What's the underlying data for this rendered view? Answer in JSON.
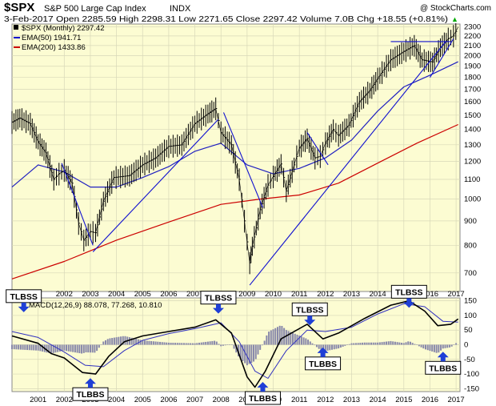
{
  "header": {
    "symbol": "$SPX",
    "name": "S&P 500 Large Cap Index",
    "exchange": "INDX",
    "watermark": "@ StockCharts.com",
    "quote": "3-Feb-2017   Open 2285.59  High 2298.31  Low 2271.65  Close 2297.42  Volume 7.0B  Chg +18.55 (+0.81%)",
    "quote_arrow": "▲"
  },
  "legend": [
    {
      "label": "$SPX (Monthly) 2297.42",
      "color": "#000000"
    },
    {
      "label": "EMA(50) 1941.71",
      "color": "#0000cc"
    },
    {
      "label": "EMA(200) 1433.86",
      "color": "#cc0000"
    }
  ],
  "macd_legend": "MACD(12,26,9) 88.078, 77.268, 10.810",
  "colors": {
    "panel_bg": "#fcfcd2",
    "grid": "#d8d8b8",
    "price": "#000000",
    "ema50": "#2020c0",
    "ema200": "#cc0000",
    "trendline": "#1010d0",
    "macd_line": "#000000",
    "signal_line": "#3030c0",
    "histogram": "#8888aa",
    "callout_arrow": "#1f3fd6"
  },
  "chart_data": {
    "type": "line",
    "price_axis": {
      "scale": "log",
      "range": [
        640,
        2330
      ],
      "ticks": [
        700,
        800,
        900,
        1000,
        1100,
        1200,
        1300,
        1400,
        1500,
        1600,
        1700,
        1800,
        1900,
        2000,
        2100,
        2200,
        2300
      ]
    },
    "x_top_ticks": [
      "2002",
      "2003",
      "2004",
      "2005",
      "2006",
      "2007",
      "2008",
      "2009",
      "2010",
      "2011",
      "2012",
      "2013",
      "2014",
      "2015",
      "2016",
      "2017"
    ],
    "x_bottom_ticks": [
      "2001",
      "2002",
      "2003",
      "2004",
      "2005",
      "2006",
      "2007",
      "2008",
      "2009",
      "2010",
      "2011",
      "2012",
      "2013",
      "2014",
      "2015",
      "2016",
      "2017"
    ],
    "price_series": [
      {
        "x": 2000.0,
        "y": 1450
      },
      {
        "x": 2000.3,
        "y": 1480
      },
      {
        "x": 2000.7,
        "y": 1440
      },
      {
        "x": 2001.0,
        "y": 1320
      },
      {
        "x": 2001.3,
        "y": 1250
      },
      {
        "x": 2001.6,
        "y": 1100
      },
      {
        "x": 2001.8,
        "y": 1130
      },
      {
        "x": 2002.0,
        "y": 1150
      },
      {
        "x": 2002.3,
        "y": 1080
      },
      {
        "x": 2002.55,
        "y": 890
      },
      {
        "x": 2002.75,
        "y": 820
      },
      {
        "x": 2003.0,
        "y": 855
      },
      {
        "x": 2003.2,
        "y": 850
      },
      {
        "x": 2003.5,
        "y": 990
      },
      {
        "x": 2003.9,
        "y": 1110
      },
      {
        "x": 2004.5,
        "y": 1120
      },
      {
        "x": 2005.0,
        "y": 1180
      },
      {
        "x": 2005.5,
        "y": 1220
      },
      {
        "x": 2006.0,
        "y": 1290
      },
      {
        "x": 2006.5,
        "y": 1300
      },
      {
        "x": 2007.0,
        "y": 1440
      },
      {
        "x": 2007.5,
        "y": 1510
      },
      {
        "x": 2007.8,
        "y": 1549
      },
      {
        "x": 2008.0,
        "y": 1380
      },
      {
        "x": 2008.4,
        "y": 1300
      },
      {
        "x": 2008.7,
        "y": 1100
      },
      {
        "x": 2008.9,
        "y": 900
      },
      {
        "x": 2009.1,
        "y": 735
      },
      {
        "x": 2009.2,
        "y": 797
      },
      {
        "x": 2009.5,
        "y": 950
      },
      {
        "x": 2009.8,
        "y": 1070
      },
      {
        "x": 2010.0,
        "y": 1115
      },
      {
        "x": 2010.3,
        "y": 1185
      },
      {
        "x": 2010.5,
        "y": 1040
      },
      {
        "x": 2010.8,
        "y": 1180
      },
      {
        "x": 2011.0,
        "y": 1280
      },
      {
        "x": 2011.3,
        "y": 1340
      },
      {
        "x": 2011.6,
        "y": 1220
      },
      {
        "x": 2011.8,
        "y": 1230
      },
      {
        "x": 2012.0,
        "y": 1310
      },
      {
        "x": 2012.3,
        "y": 1400
      },
      {
        "x": 2012.5,
        "y": 1360
      },
      {
        "x": 2012.9,
        "y": 1430
      },
      {
        "x": 2013.3,
        "y": 1600
      },
      {
        "x": 2013.7,
        "y": 1690
      },
      {
        "x": 2014.0,
        "y": 1790
      },
      {
        "x": 2014.5,
        "y": 1960
      },
      {
        "x": 2015.0,
        "y": 2040
      },
      {
        "x": 2015.4,
        "y": 2100
      },
      {
        "x": 2015.7,
        "y": 1960
      },
      {
        "x": 2016.1,
        "y": 1940
      },
      {
        "x": 2016.4,
        "y": 2080
      },
      {
        "x": 2016.7,
        "y": 2170
      },
      {
        "x": 2016.9,
        "y": 2200
      },
      {
        "x": 2017.08,
        "y": 2297
      }
    ],
    "ema50_series": [
      {
        "x": 2000.0,
        "y": 1060
      },
      {
        "x": 2001.0,
        "y": 1180
      },
      {
        "x": 2002.0,
        "y": 1140
      },
      {
        "x": 2003.0,
        "y": 1060
      },
      {
        "x": 2004.0,
        "y": 1060
      },
      {
        "x": 2005.0,
        "y": 1110
      },
      {
        "x": 2006.0,
        "y": 1170
      },
      {
        "x": 2007.0,
        "y": 1260
      },
      {
        "x": 2008.0,
        "y": 1310
      },
      {
        "x": 2009.0,
        "y": 1180
      },
      {
        "x": 2010.0,
        "y": 1130
      },
      {
        "x": 2011.0,
        "y": 1160
      },
      {
        "x": 2012.0,
        "y": 1220
      },
      {
        "x": 2013.0,
        "y": 1330
      },
      {
        "x": 2014.0,
        "y": 1530
      },
      {
        "x": 2015.0,
        "y": 1720
      },
      {
        "x": 2016.0,
        "y": 1820
      },
      {
        "x": 2017.08,
        "y": 1942
      }
    ],
    "ema200_series": [
      {
        "x": 2000.0,
        "y": 680
      },
      {
        "x": 2002.0,
        "y": 740
      },
      {
        "x": 2004.0,
        "y": 820
      },
      {
        "x": 2006.0,
        "y": 895
      },
      {
        "x": 2008.0,
        "y": 975
      },
      {
        "x": 2009.5,
        "y": 1000
      },
      {
        "x": 2011.0,
        "y": 1020
      },
      {
        "x": 2012.5,
        "y": 1080
      },
      {
        "x": 2014.0,
        "y": 1190
      },
      {
        "x": 2015.5,
        "y": 1310
      },
      {
        "x": 2017.08,
        "y": 1434
      }
    ],
    "trendlines": [
      {
        "x1": 2001.9,
        "y1": 1190,
        "x2": 2003.1,
        "y2": 800
      },
      {
        "x1": 2003.1,
        "y1": 775,
        "x2": 2007.9,
        "y2": 1470
      },
      {
        "x1": 2008.1,
        "y1": 1520,
        "x2": 2009.6,
        "y2": 960
      },
      {
        "x1": 2009.1,
        "y1": 660,
        "x2": 2016.6,
        "y2": 2140
      },
      {
        "x1": 2011.3,
        "y1": 1380,
        "x2": 2012.1,
        "y2": 1180
      },
      {
        "x1": 2014.5,
        "y1": 2140,
        "x2": 2016.8,
        "y2": 2140
      },
      {
        "x1": 2016.0,
        "y1": 1800,
        "x2": 2016.9,
        "y2": 2170
      }
    ],
    "macd_axis": {
      "range": [
        -160,
        160
      ],
      "ticks": [
        150,
        100,
        50,
        0,
        -50,
        -100,
        -150
      ]
    },
    "macd_series": [
      {
        "x": 2000.0,
        "y": 30
      },
      {
        "x": 2001.0,
        "y": 5
      },
      {
        "x": 2001.5,
        "y": -30
      },
      {
        "x": 2002.0,
        "y": -45
      },
      {
        "x": 2002.7,
        "y": -95
      },
      {
        "x": 2003.2,
        "y": -100
      },
      {
        "x": 2003.7,
        "y": -40
      },
      {
        "x": 2004.3,
        "y": 10
      },
      {
        "x": 2005.0,
        "y": 30
      },
      {
        "x": 2006.0,
        "y": 45
      },
      {
        "x": 2007.0,
        "y": 60
      },
      {
        "x": 2007.8,
        "y": 85
      },
      {
        "x": 2008.4,
        "y": 40
      },
      {
        "x": 2009.0,
        "y": -110
      },
      {
        "x": 2009.3,
        "y": -145
      },
      {
        "x": 2009.7,
        "y": -90
      },
      {
        "x": 2010.3,
        "y": 20
      },
      {
        "x": 2011.3,
        "y": 70
      },
      {
        "x": 2011.9,
        "y": 20
      },
      {
        "x": 2012.5,
        "y": 40
      },
      {
        "x": 2013.5,
        "y": 90
      },
      {
        "x": 2014.5,
        "y": 135
      },
      {
        "x": 2015.2,
        "y": 150
      },
      {
        "x": 2015.8,
        "y": 115
      },
      {
        "x": 2016.3,
        "y": 65
      },
      {
        "x": 2016.8,
        "y": 70
      },
      {
        "x": 2017.08,
        "y": 88
      }
    ],
    "signal_series": [
      {
        "x": 2000.0,
        "y": 45
      },
      {
        "x": 2001.0,
        "y": 25
      },
      {
        "x": 2002.0,
        "y": -25
      },
      {
        "x": 2002.8,
        "y": -70
      },
      {
        "x": 2003.5,
        "y": -75
      },
      {
        "x": 2004.3,
        "y": -20
      },
      {
        "x": 2005.0,
        "y": 15
      },
      {
        "x": 2006.0,
        "y": 38
      },
      {
        "x": 2007.0,
        "y": 55
      },
      {
        "x": 2008.0,
        "y": 75
      },
      {
        "x": 2008.7,
        "y": 10
      },
      {
        "x": 2009.3,
        "y": -90
      },
      {
        "x": 2009.8,
        "y": -115
      },
      {
        "x": 2010.5,
        "y": -20
      },
      {
        "x": 2011.3,
        "y": 50
      },
      {
        "x": 2012.0,
        "y": 45
      },
      {
        "x": 2013.0,
        "y": 60
      },
      {
        "x": 2014.0,
        "y": 105
      },
      {
        "x": 2015.0,
        "y": 140
      },
      {
        "x": 2015.8,
        "y": 130
      },
      {
        "x": 2016.5,
        "y": 80
      },
      {
        "x": 2017.08,
        "y": 77
      }
    ],
    "annotations": [
      {
        "label": "TLBSS",
        "x": 2000.45,
        "y": 155,
        "pointer": "down"
      },
      {
        "label": "TLBBS",
        "x": 2003.0,
        "y": -125,
        "pointer": "up"
      },
      {
        "label": "TLBSS",
        "x": 2007.9,
        "y": 150,
        "pointer": "down"
      },
      {
        "label": "TLBBS",
        "x": 2009.6,
        "y": -155,
        "pointer": "up"
      },
      {
        "label": "TLBSS",
        "x": 2011.4,
        "y": 110,
        "pointer": "down"
      },
      {
        "label": "TLBBS",
        "x": 2011.9,
        "y": -20,
        "pointer": "up"
      },
      {
        "label": "TLBSS",
        "x": 2015.2,
        "y": 170,
        "pointer": "down"
      },
      {
        "label": "TLBBS",
        "x": 2016.5,
        "y": -35,
        "pointer": "up"
      }
    ]
  }
}
